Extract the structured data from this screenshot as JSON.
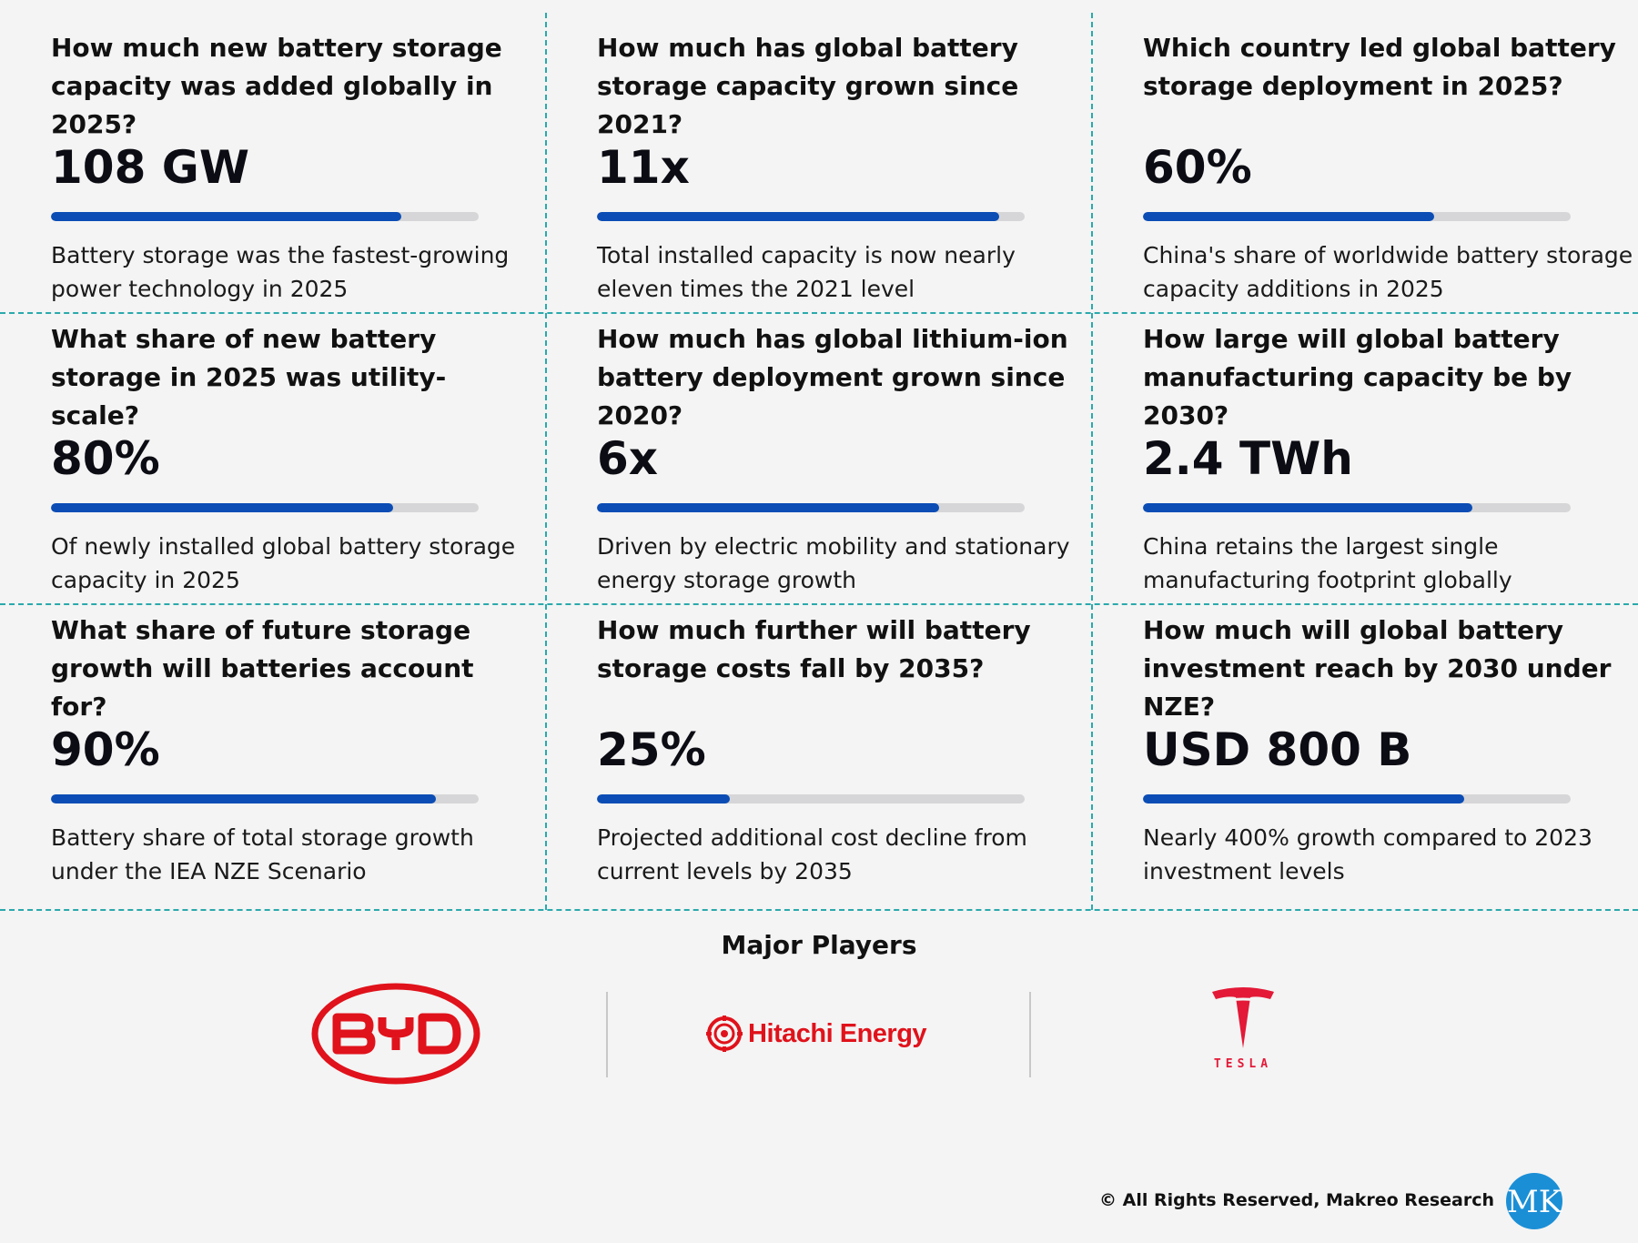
{
  "stats": [
    {
      "question": "How much new battery storage capacity was added globally in 2025?",
      "value": "108 GW",
      "progress": 0.82,
      "description": "Battery storage was the fastest-growing power technology in 2025"
    },
    {
      "question": "How much has global battery storage capacity grown since 2021?",
      "value": "11x",
      "progress": 0.94,
      "description": "Total installed capacity is now nearly eleven times the 2021 level"
    },
    {
      "question": "Which country led global battery storage deployment in 2025?",
      "value": "60%",
      "progress": 0.68,
      "description": "China's share of worldwide battery storage capacity additions in 2025"
    },
    {
      "question": "What share of new battery storage in 2025 was utility-scale?",
      "value": "80%",
      "progress": 0.8,
      "description": "Of newly installed global battery storage capacity in 2025"
    },
    {
      "question": "How much has global lithium-ion battery deployment grown since 2020?",
      "value": "6x",
      "progress": 0.8,
      "description": "Driven by electric mobility and stationary energy storage growth"
    },
    {
      "question": "How large will global battery manufacturing capacity be by 2030?",
      "value": "2.4 TWh",
      "progress": 0.77,
      "description": "China retains the largest single manufacturing footprint globally"
    },
    {
      "question": "What share of future storage growth will batteries account for?",
      "value": "90%",
      "progress": 0.9,
      "description": "Battery share of total storage growth under the IEA NZE Scenario"
    },
    {
      "question": "How much further will battery storage costs fall by 2035?",
      "value": "25%",
      "progress": 0.31,
      "description": "Projected additional cost decline from current levels by 2035"
    },
    {
      "question": "How much will global battery investment reach by 2030 under NZE?",
      "value": "USD 800 B",
      "progress": 0.75,
      "description": "Nearly 400% growth compared to 2023 investment levels"
    }
  ],
  "players": {
    "title": "Major Players",
    "logos": [
      {
        "name": "BYD",
        "text": "BYD",
        "color": "#e0121b"
      },
      {
        "name": "Hitachi Energy",
        "text": "Hitachi Energy",
        "color": "#e0121b"
      },
      {
        "name": "Tesla",
        "text": "TESLA",
        "color": "#e31937"
      }
    ]
  },
  "footer": {
    "copyright": "© All Rights Reserved, Makreo Research",
    "logo_text": "MK",
    "logo_color": "#1b8fd6"
  }
}
